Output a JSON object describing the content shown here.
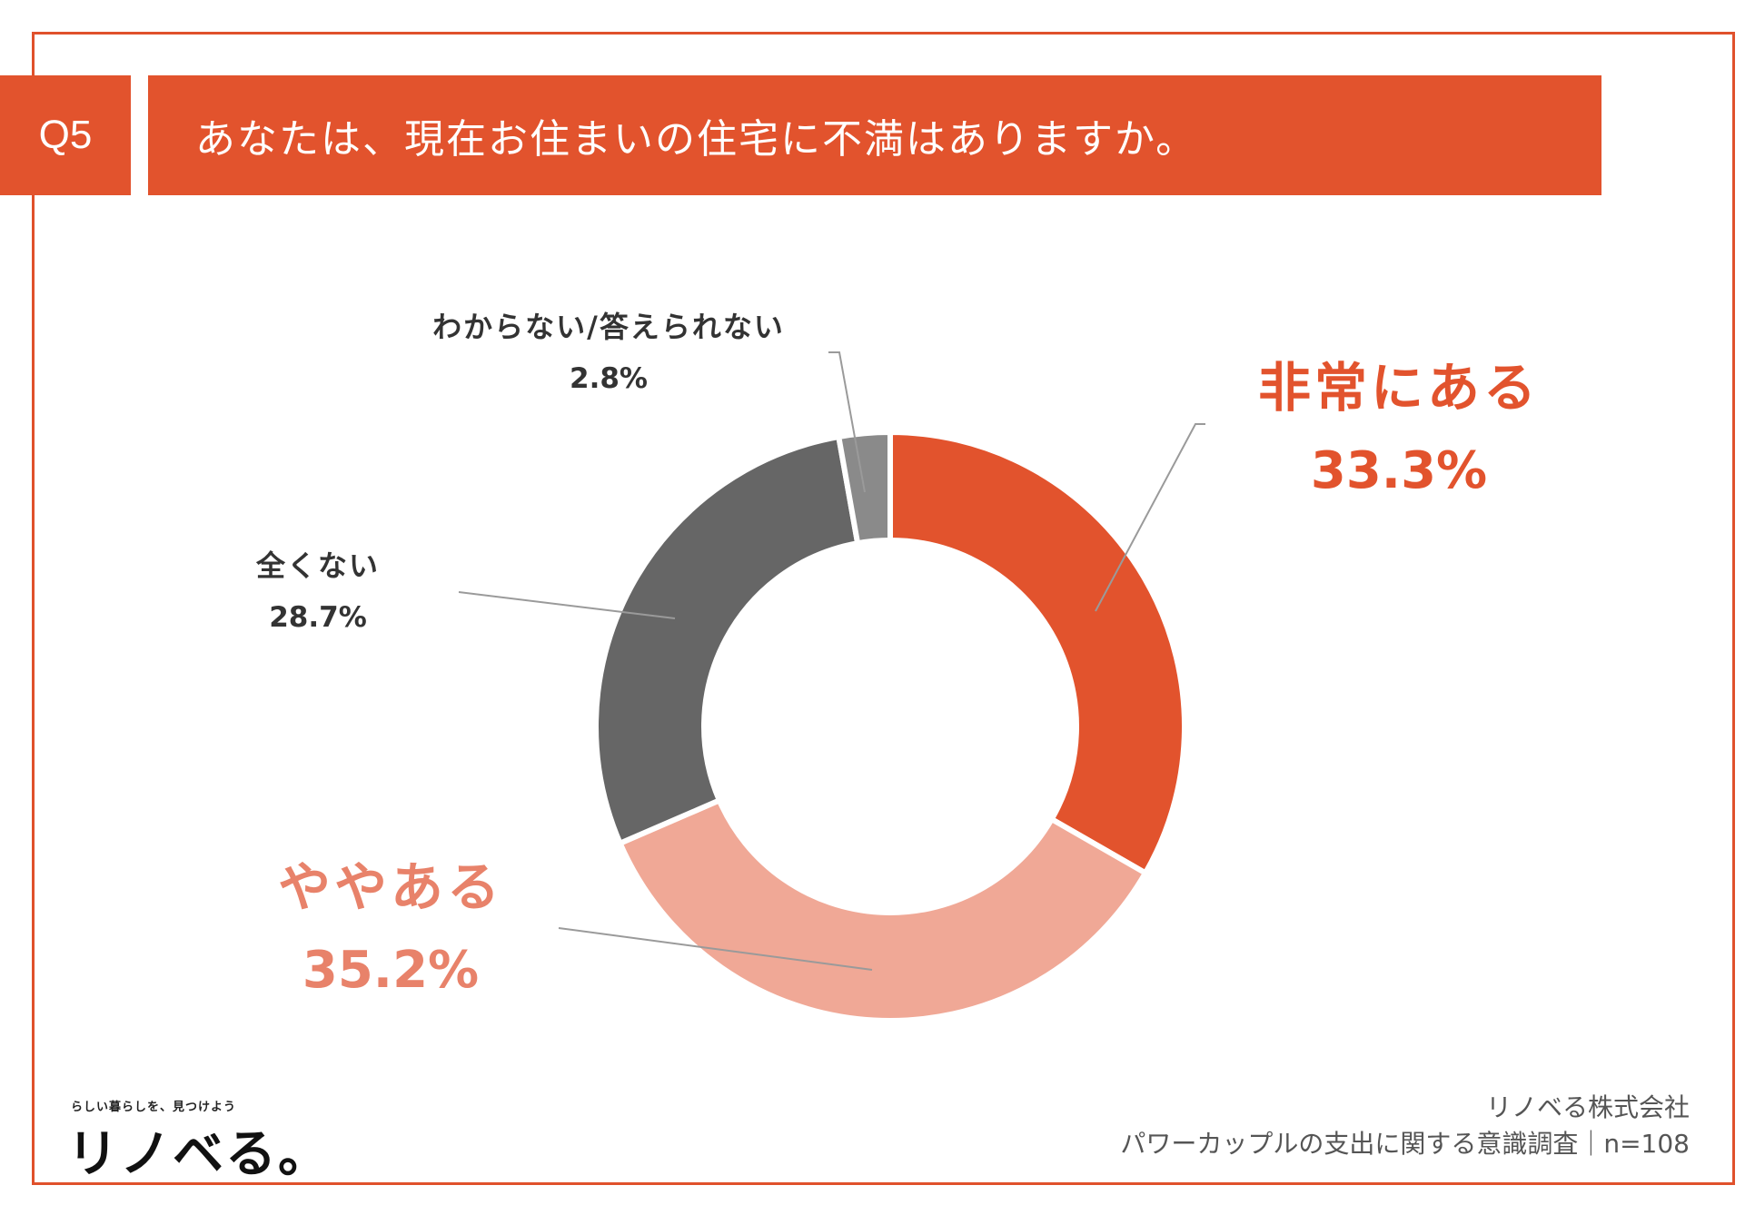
{
  "header": {
    "badge": "Q5",
    "question": "あなたは、現在お住まいの住宅に不満はありますか。"
  },
  "chart_data": {
    "type": "pie",
    "variant": "donut",
    "categories": [
      "非常にある",
      "ややある",
      "全くない",
      "わからない/答えられない"
    ],
    "values": [
      33.3,
      35.2,
      28.7,
      2.8
    ],
    "value_labels": [
      "33.3%",
      "35.2%",
      "28.7%",
      "2.8%"
    ],
    "colors": [
      "#e2532d",
      "#f0a896",
      "#666666",
      "#8a8a8a"
    ],
    "label_colors": [
      "#e2532d",
      "#e8826a",
      "#333333",
      "#333333"
    ]
  },
  "footer": {
    "logo_tagline": "らしい暮らしを、見つけよう",
    "logo": "リノベる。",
    "company": "リノベる株式会社",
    "survey": "パワーカップルの支出に関する意識調査｜n=108"
  }
}
